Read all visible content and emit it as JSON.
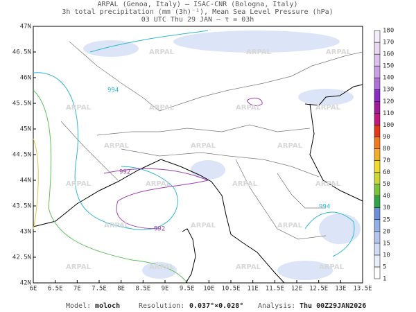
{
  "header": {
    "line1": "ARPAL (Genoa, Italy)  –  ISAC-CNR (Bologna, Italy)",
    "line2": "3h total precipitation (mm (3h)⁻¹), Mean Sea Level Pressure (hPa)",
    "line3": "03 UTC Thu 29 JAN  –  τ = 03h"
  },
  "map": {
    "lat_labels": [
      "47N",
      "46.5N",
      "46N",
      "45.5N",
      "45N",
      "44.5N",
      "44N",
      "43.5N",
      "43N",
      "42.5N",
      "42N"
    ],
    "lon_labels": [
      "6E",
      "6.5E",
      "7E",
      "7.5E",
      "8E",
      "8.5E",
      "9E",
      "9.5E",
      "10E",
      "10.5E",
      "11E",
      "11.5E",
      "12E",
      "12.5E",
      "13E",
      "13.5E"
    ],
    "watermark": "ARPAL",
    "contour_labels": [
      "994",
      "992",
      "992",
      "994"
    ]
  },
  "colorbar": {
    "levels": [
      1,
      5,
      10,
      15,
      20,
      25,
      30,
      40,
      50,
      60,
      70,
      80,
      90,
      100,
      110,
      120,
      130,
      140,
      150,
      160,
      170,
      180
    ],
    "colors": [
      "#ffffff",
      "#e8eefa",
      "#cfdcf4",
      "#b4c6ee",
      "#94aee6",
      "#6d8fd8",
      "#2fa34a",
      "#78c23c",
      "#c9d733",
      "#f0dc2a",
      "#f4ae24",
      "#f07a1e",
      "#e6361a",
      "#c0187c",
      "#a01a9a",
      "#8a2bc4",
      "#b070d8",
      "#c9a0e4",
      "#ddbfec",
      "#ead8f2",
      "#f4ecf8"
    ]
  },
  "footer": {
    "model_label": "Model:",
    "model": "moloch",
    "res_label": "Resolution:",
    "res": "0.037°×0.028°",
    "analysis_label": "Analysis:",
    "analysis": "Thu 00Z29JAN2026"
  }
}
